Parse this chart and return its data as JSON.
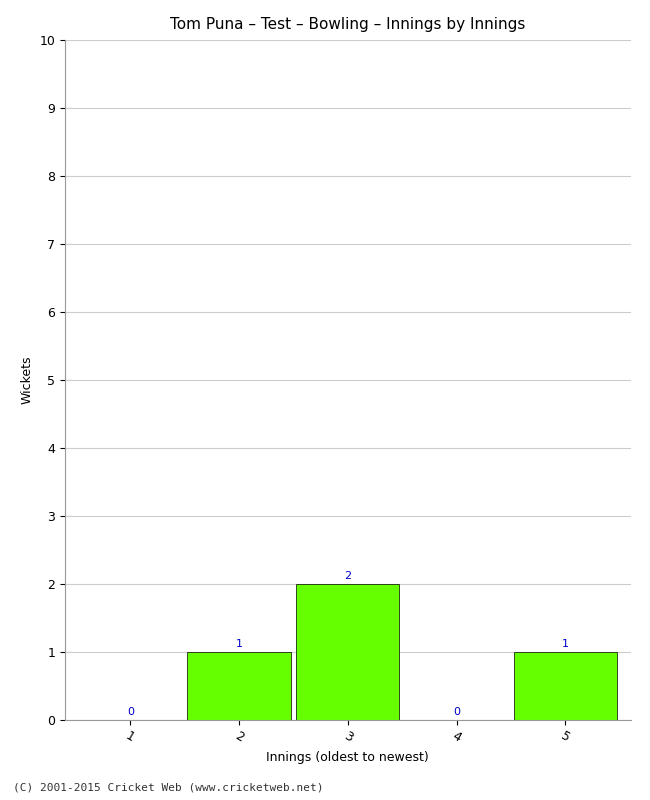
{
  "title": "Tom Puna – Test – Bowling – Innings by Innings",
  "xlabel": "Innings (oldest to newest)",
  "ylabel": "Wickets",
  "categories": [
    1,
    2,
    3,
    4,
    5
  ],
  "values": [
    0,
    1,
    2,
    0,
    1
  ],
  "bar_color": "#66ff00",
  "bar_edge_color": "#000000",
  "ylim": [
    0,
    10
  ],
  "yticks": [
    0,
    1,
    2,
    3,
    4,
    5,
    6,
    7,
    8,
    9,
    10
  ],
  "xticks": [
    1,
    2,
    3,
    4,
    5
  ],
  "value_label_color": "#0000cc",
  "background_color": "#ffffff",
  "plot_bg_color": "#ffffff",
  "footer": "(C) 2001-2015 Cricket Web (www.cricketweb.net)",
  "title_fontsize": 11,
  "label_fontsize": 9,
  "tick_fontsize": 9,
  "value_label_fontsize": 8,
  "footer_fontsize": 8,
  "grid_color": "#cccccc",
  "bar_width": 0.95,
  "xlim": [
    0.4,
    5.6
  ]
}
